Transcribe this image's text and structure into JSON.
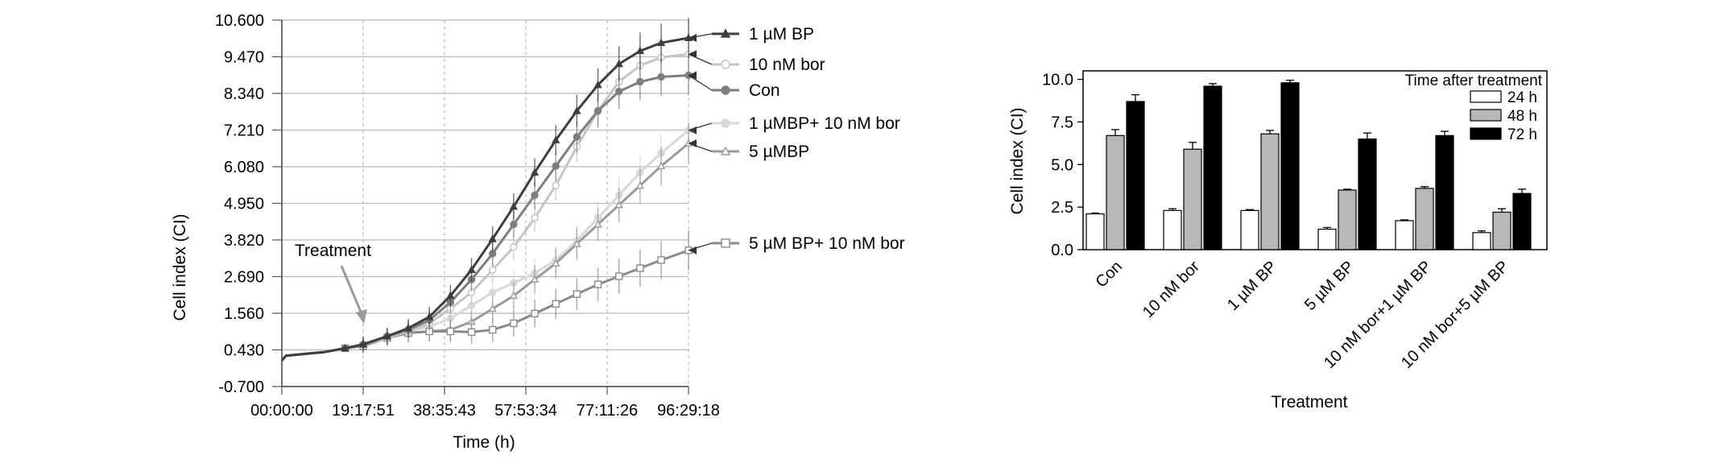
{
  "chart_data": [
    {
      "type": "line",
      "xlabel": "Time (h)",
      "ylabel": "Cell index (CI)",
      "ylim": [
        -0.7,
        10.6
      ],
      "y_ticks": [
        "10.600",
        "9.470",
        "8.340",
        "7.210",
        "6.080",
        "4.950",
        "3.820",
        "2.690",
        "1.560",
        "0.430",
        "-0.700"
      ],
      "x_ticks": [
        "00:00:00",
        "19:17:51",
        "38:35:43",
        "57:53:34",
        "77:11:26",
        "96:29:18"
      ],
      "x_tick_hours": [
        0,
        19.2975,
        38.5953,
        57.8928,
        77.1906,
        96.4883
      ],
      "grid": true,
      "annotation": "Treatment",
      "annotation_hour": 19.3,
      "series": [
        {
          "name": "1 µM BP",
          "color": "#3e3e3e",
          "marker": "triangle-filled",
          "x": [
            0,
            1,
            5,
            10,
            15,
            19.3,
            25,
            30,
            35,
            40,
            45,
            50,
            55,
            60,
            65,
            70,
            75,
            80,
            85,
            90,
            96.5
          ],
          "y": [
            0.1,
            0.25,
            0.3,
            0.36,
            0.48,
            0.6,
            0.85,
            1.1,
            1.45,
            2.1,
            2.9,
            3.85,
            4.85,
            5.9,
            6.9,
            7.8,
            8.6,
            9.25,
            9.65,
            9.9,
            10.05
          ]
        },
        {
          "name": "10 nM bor",
          "color": "#c4c4c4",
          "marker": "circle-open",
          "x": [
            0,
            1,
            5,
            10,
            15,
            19.3,
            25,
            30,
            35,
            40,
            45,
            50,
            55,
            60,
            65,
            70,
            75,
            80,
            85,
            90,
            96.5
          ],
          "y": [
            0.1,
            0.25,
            0.3,
            0.36,
            0.48,
            0.6,
            0.8,
            1.0,
            1.25,
            1.7,
            2.2,
            2.9,
            3.6,
            4.5,
            5.5,
            6.7,
            7.8,
            8.7,
            9.2,
            9.45,
            9.55
          ]
        },
        {
          "name": "Con",
          "color": "#7e7e7e",
          "marker": "circle-filled",
          "x": [
            0,
            1,
            5,
            10,
            15,
            19.3,
            25,
            30,
            35,
            40,
            45,
            50,
            55,
            60,
            65,
            70,
            75,
            80,
            85,
            90,
            96.5
          ],
          "y": [
            0.1,
            0.25,
            0.3,
            0.36,
            0.48,
            0.6,
            0.85,
            1.05,
            1.35,
            1.9,
            2.6,
            3.4,
            4.3,
            5.2,
            6.1,
            7.0,
            7.8,
            8.4,
            8.7,
            8.85,
            8.9
          ]
        },
        {
          "name": "1 µMBP+ 10 nM bor",
          "color": "#d8d8d8",
          "marker": "circle-filled",
          "x": [
            0,
            1,
            5,
            10,
            15,
            19.3,
            25,
            30,
            35,
            40,
            45,
            50,
            55,
            60,
            65,
            70,
            75,
            80,
            85,
            90,
            96.5
          ],
          "y": [
            0.1,
            0.25,
            0.3,
            0.36,
            0.48,
            0.6,
            0.8,
            1.0,
            1.15,
            1.4,
            1.8,
            2.2,
            2.5,
            2.8,
            3.2,
            3.8,
            4.5,
            5.2,
            5.9,
            6.5,
            7.2
          ]
        },
        {
          "name": "5 µMBP",
          "color": "#9a9a9a",
          "marker": "triangle-open",
          "x": [
            0,
            1,
            5,
            10,
            15,
            19.3,
            25,
            30,
            35,
            40,
            45,
            50,
            55,
            60,
            65,
            70,
            75,
            80,
            85,
            90,
            96.5
          ],
          "y": [
            0.1,
            0.25,
            0.3,
            0.36,
            0.48,
            0.6,
            0.8,
            0.95,
            1.0,
            1.05,
            1.3,
            1.7,
            2.1,
            2.6,
            3.1,
            3.7,
            4.3,
            4.9,
            5.5,
            6.1,
            6.8
          ]
        },
        {
          "name": "5 µM BP+ 10 nM bor",
          "color": "#8a8a8a",
          "marker": "square-open",
          "x": [
            0,
            1,
            5,
            10,
            15,
            19.3,
            25,
            30,
            35,
            40,
            45,
            50,
            55,
            60,
            65,
            70,
            75,
            80,
            85,
            90,
            96.5
          ],
          "y": [
            0.1,
            0.25,
            0.3,
            0.36,
            0.48,
            0.55,
            0.8,
            0.95,
            1.0,
            1.0,
            0.98,
            1.05,
            1.25,
            1.55,
            1.85,
            2.15,
            2.45,
            2.7,
            2.95,
            3.2,
            3.5
          ]
        }
      ]
    },
    {
      "type": "bar",
      "xlabel": "Treatment",
      "ylabel": "Cell index (CI)",
      "ylim": [
        0,
        10.5
      ],
      "y_ticks": [
        "10.0",
        "7.5",
        "5.0",
        "2.5",
        "0.0"
      ],
      "legend_title": "Time after treatment",
      "legend_placement": "top-right",
      "categories": [
        "Con",
        "10 nM bor",
        "1 µM BP",
        "5 µM BP",
        "10 nM bor+1 µM BP",
        "10 nM bor+5 µM BP"
      ],
      "series": [
        {
          "name": "24 h",
          "color": "#ffffff",
          "values": [
            2.1,
            2.3,
            2.3,
            1.2,
            1.7,
            1.0
          ],
          "errors": [
            0.05,
            0.1,
            0.05,
            0.1,
            0.05,
            0.1
          ]
        },
        {
          "name": "48 h",
          "color": "#b8b8b8",
          "values": [
            6.7,
            5.9,
            6.8,
            3.5,
            3.6,
            2.2
          ],
          "errors": [
            0.35,
            0.4,
            0.2,
            0.05,
            0.1,
            0.2
          ]
        },
        {
          "name": "72 h",
          "color": "#000000",
          "values": [
            8.7,
            9.6,
            9.8,
            6.5,
            6.7,
            3.3
          ],
          "errors": [
            0.4,
            0.15,
            0.15,
            0.35,
            0.25,
            0.25
          ]
        }
      ]
    }
  ]
}
